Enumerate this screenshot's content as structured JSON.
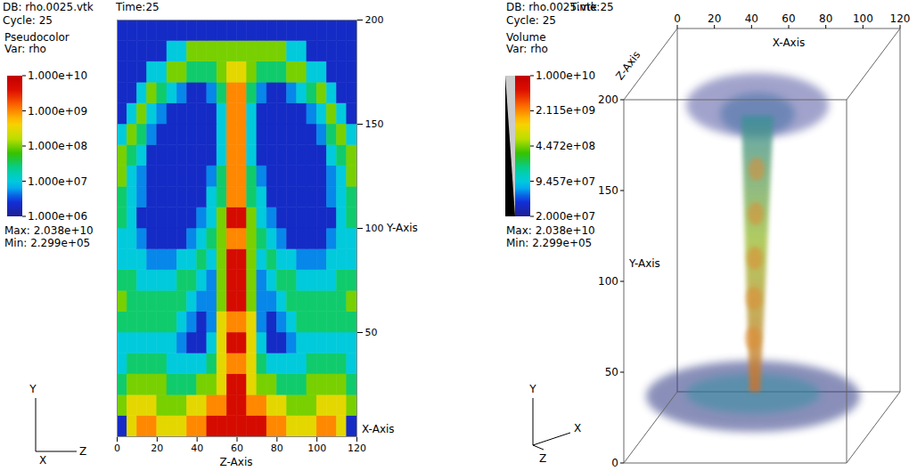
{
  "chart_data": [
    {
      "type": "heatmap",
      "db_label": "DB: rho.0025.vtk",
      "cycle_label": "Cycle: 25",
      "time_label": "Time:25",
      "plot_name": "Pseudocolor",
      "var_label": "Var: rho",
      "max_label": "Max: 2.038e+10",
      "min_label": "Min: 2.299e+05",
      "x_label": "Z-Axis",
      "y_label": "Y-Axis",
      "depth_label": "X-Axis",
      "triad": [
        "Y",
        "X",
        "Z"
      ],
      "xlim": [
        0,
        120
      ],
      "xticks": [
        0,
        20,
        40,
        60,
        80,
        100,
        120
      ],
      "ylim": [
        0,
        200
      ],
      "yticks": [
        50,
        100,
        150,
        200
      ],
      "x_bins": [
        0,
        5,
        10,
        15,
        20,
        25,
        30,
        35,
        40,
        45,
        50,
        55,
        60,
        65,
        70,
        75,
        80,
        85,
        90,
        95,
        100,
        105,
        110,
        115,
        120
      ],
      "y_bins": [
        0,
        10,
        20,
        30,
        40,
        50,
        60,
        70,
        80,
        90,
        100,
        110,
        120,
        130,
        140,
        150,
        160,
        170,
        180,
        190,
        200
      ],
      "cells": [
        [
          2000000.0,
          300000000.0,
          1000000000.0,
          1000000000.0,
          300000000.0,
          300000000.0,
          300000000.0,
          1000000000.0,
          1000000000.0,
          5000000000.0,
          5000000000.0,
          5000000000.0,
          5000000000.0,
          5000000000.0,
          5000000000.0,
          1000000000.0,
          1000000000.0,
          300000000.0,
          300000000.0,
          300000000.0,
          1000000000.0,
          1000000000.0,
          300000000.0,
          2000000.0
        ],
        [
          100000000.0,
          300000000.0,
          300000000.0,
          300000000.0,
          100000000.0,
          100000000.0,
          100000000.0,
          300000000.0,
          300000000.0,
          1000000000.0,
          1000000000.0,
          5000000000.0,
          5000000000.0,
          1000000000.0,
          1000000000.0,
          300000000.0,
          300000000.0,
          100000000.0,
          100000000.0,
          100000000.0,
          300000000.0,
          300000000.0,
          300000000.0,
          100000000.0
        ],
        [
          30000000.0,
          100000000.0,
          100000000.0,
          100000000.0,
          100000000.0,
          30000000.0,
          30000000.0,
          30000000.0,
          100000000.0,
          100000000.0,
          300000000.0,
          5000000000.0,
          5000000000.0,
          300000000.0,
          100000000.0,
          100000000.0,
          30000000.0,
          30000000.0,
          30000000.0,
          100000000.0,
          100000000.0,
          100000000.0,
          100000000.0,
          30000000.0
        ],
        [
          10000000.0,
          30000000.0,
          30000000.0,
          30000000.0,
          30000000.0,
          10000000.0,
          10000000.0,
          10000000.0,
          10000000.0,
          30000000.0,
          300000000.0,
          1000000000.0,
          1000000000.0,
          300000000.0,
          30000000.0,
          10000000.0,
          10000000.0,
          10000000.0,
          10000000.0,
          30000000.0,
          30000000.0,
          30000000.0,
          30000000.0,
          10000000.0
        ],
        [
          10000000.0,
          10000000.0,
          10000000.0,
          10000000.0,
          10000000.0,
          10000000.0,
          5000000.0,
          2000000.0,
          2000000.0,
          10000000.0,
          300000000.0,
          5000000000.0,
          5000000000.0,
          300000000.0,
          10000000.0,
          2000000.0,
          2000000.0,
          5000000.0,
          10000000.0,
          10000000.0,
          10000000.0,
          10000000.0,
          10000000.0,
          10000000.0
        ],
        [
          30000000.0,
          30000000.0,
          30000000.0,
          30000000.0,
          30000000.0,
          30000000.0,
          10000000.0,
          5000000.0,
          2000000.0,
          5000000.0,
          300000000.0,
          1000000000.0,
          1000000000.0,
          300000000.0,
          5000000.0,
          2000000.0,
          5000000.0,
          10000000.0,
          30000000.0,
          30000000.0,
          30000000.0,
          30000000.0,
          30000000.0,
          30000000.0
        ],
        [
          100000000.0,
          30000000.0,
          30000000.0,
          30000000.0,
          30000000.0,
          30000000.0,
          30000000.0,
          10000000.0,
          5000000.0,
          5000000.0,
          100000000.0,
          5000000000.0,
          5000000000.0,
          100000000.0,
          5000000.0,
          5000000.0,
          10000000.0,
          30000000.0,
          30000000.0,
          30000000.0,
          30000000.0,
          30000000.0,
          30000000.0,
          100000000.0
        ],
        [
          30000000.0,
          30000000.0,
          10000000.0,
          10000000.0,
          10000000.0,
          10000000.0,
          30000000.0,
          30000000.0,
          10000000.0,
          5000000.0,
          100000000.0,
          5000000000.0,
          5000000000.0,
          100000000.0,
          5000000.0,
          10000000.0,
          30000000.0,
          30000000.0,
          10000000.0,
          10000000.0,
          10000000.0,
          10000000.0,
          30000000.0,
          30000000.0
        ],
        [
          10000000.0,
          10000000.0,
          10000000.0,
          5000000.0,
          5000000.0,
          5000000.0,
          10000000.0,
          10000000.0,
          30000000.0,
          10000000.0,
          100000000.0,
          5000000000.0,
          5000000000.0,
          100000000.0,
          10000000.0,
          30000000.0,
          10000000.0,
          10000000.0,
          5000000.0,
          5000000.0,
          5000000.0,
          10000000.0,
          10000000.0,
          10000000.0
        ],
        [
          10000000.0,
          10000000.0,
          5000000.0,
          2000000.0,
          2000000.0,
          2000000.0,
          2000000.0,
          5000000.0,
          10000000.0,
          30000000.0,
          100000000.0,
          1000000000.0,
          1000000000.0,
          100000000.0,
          30000000.0,
          10000000.0,
          5000000.0,
          2000000.0,
          2000000.0,
          2000000.0,
          2000000.0,
          5000000.0,
          10000000.0,
          10000000.0
        ],
        [
          30000000.0,
          10000000.0,
          2000000.0,
          2000000.0,
          2000000.0,
          2000000.0,
          2000000.0,
          2000000.0,
          5000000.0,
          10000000.0,
          100000000.0,
          5000000000.0,
          5000000000.0,
          100000000.0,
          10000000.0,
          5000000.0,
          2000000.0,
          2000000.0,
          2000000.0,
          2000000.0,
          2000000.0,
          2000000.0,
          10000000.0,
          30000000.0
        ],
        [
          30000000.0,
          10000000.0,
          5000000.0,
          2000000.0,
          2000000.0,
          2000000.0,
          2000000.0,
          2000000.0,
          2000000.0,
          10000000.0,
          30000000.0,
          1000000000.0,
          1000000000.0,
          30000000.0,
          10000000.0,
          2000000.0,
          2000000.0,
          2000000.0,
          2000000.0,
          2000000.0,
          2000000.0,
          5000000.0,
          10000000.0,
          30000000.0
        ],
        [
          100000000.0,
          10000000.0,
          5000000.0,
          2000000.0,
          2000000.0,
          2000000.0,
          2000000.0,
          2000000.0,
          2000000.0,
          5000000.0,
          30000000.0,
          1000000000.0,
          1000000000.0,
          30000000.0,
          5000000.0,
          2000000.0,
          2000000.0,
          2000000.0,
          2000000.0,
          2000000.0,
          2000000.0,
          5000000.0,
          10000000.0,
          100000000.0
        ],
        [
          100000000.0,
          30000000.0,
          10000000.0,
          2000000.0,
          2000000.0,
          2000000.0,
          2000000.0,
          2000000.0,
          2000000.0,
          2000000.0,
          10000000.0,
          1000000000.0,
          1000000000.0,
          10000000.0,
          2000000.0,
          2000000.0,
          2000000.0,
          2000000.0,
          2000000.0,
          2000000.0,
          2000000.0,
          10000000.0,
          30000000.0,
          100000000.0
        ],
        [
          10000000.0,
          100000000.0,
          30000000.0,
          5000000.0,
          2000000.0,
          2000000.0,
          2000000.0,
          2000000.0,
          2000000.0,
          2000000.0,
          10000000.0,
          1000000000.0,
          1000000000.0,
          10000000.0,
          2000000.0,
          2000000.0,
          2000000.0,
          2000000.0,
          2000000.0,
          2000000.0,
          5000000.0,
          30000000.0,
          100000000.0,
          10000000.0
        ],
        [
          2000000.0,
          10000000.0,
          100000000.0,
          10000000.0,
          5000000.0,
          2000000.0,
          2000000.0,
          2000000.0,
          2000000.0,
          2000000.0,
          10000000.0,
          1000000000.0,
          1000000000.0,
          10000000.0,
          2000000.0,
          2000000.0,
          2000000.0,
          2000000.0,
          2000000.0,
          5000000.0,
          10000000.0,
          100000000.0,
          10000000.0,
          2000000.0
        ],
        [
          2000000.0,
          2000000.0,
          10000000.0,
          100000000.0,
          30000000.0,
          10000000.0,
          5000000.0,
          2000000.0,
          2000000.0,
          5000000.0,
          30000000.0,
          1000000000.0,
          1000000000.0,
          30000000.0,
          5000000.0,
          2000000.0,
          2000000.0,
          5000000.0,
          10000000.0,
          30000000.0,
          100000000.0,
          10000000.0,
          2000000.0,
          2000000.0
        ],
        [
          2000000.0,
          2000000.0,
          2000000.0,
          10000000.0,
          10000000.0,
          100000000.0,
          100000000.0,
          30000000.0,
          30000000.0,
          30000000.0,
          100000000.0,
          300000000.0,
          300000000.0,
          100000000.0,
          30000000.0,
          30000000.0,
          30000000.0,
          100000000.0,
          100000000.0,
          10000000.0,
          10000000.0,
          2000000.0,
          2000000.0,
          2000000.0
        ],
        [
          2000000.0,
          2000000.0,
          2000000.0,
          2000000.0,
          2000000.0,
          10000000.0,
          10000000.0,
          100000000.0,
          100000000.0,
          100000000.0,
          100000000.0,
          100000000.0,
          100000000.0,
          100000000.0,
          100000000.0,
          100000000.0,
          100000000.0,
          10000000.0,
          10000000.0,
          2000000.0,
          2000000.0,
          2000000.0,
          2000000.0,
          2000000.0
        ],
        [
          2000000.0,
          2000000.0,
          2000000.0,
          2000000.0,
          2000000.0,
          2000000.0,
          2000000.0,
          2000000.0,
          2000000.0,
          2000000.0,
          2000000.0,
          2000000.0,
          2000000.0,
          2000000.0,
          2000000.0,
          2000000.0,
          2000000.0,
          2000000.0,
          2000000.0,
          2000000.0,
          2000000.0,
          2000000.0,
          2000000.0,
          2000000.0
        ]
      ],
      "colorbar": {
        "log": true,
        "range": [
          1000000.0,
          10000000000.0
        ],
        "ticks": [
          {
            "value": 10000000000.0,
            "label": "1.000e+10"
          },
          {
            "value": 1000000000.0,
            "label": "1.000e+09"
          },
          {
            "value": 100000000.0,
            "label": "1.000e+08"
          },
          {
            "value": 10000000.0,
            "label": "1.000e+07"
          },
          {
            "value": 1000000.0,
            "label": "1.000e+06"
          }
        ]
      }
    },
    {
      "type": "volume",
      "db_label": "DB: rho.0025.vtk",
      "cycle_label": "Cycle: 25",
      "time_label": "Time:25",
      "plot_name": "Volume",
      "var_label": "Var: rho",
      "max_label": "Max: 2.038e+10",
      "min_label": "Min: 2.299e+05",
      "x_label": "X-Axis",
      "y_label": "Y-Axis",
      "depth_label": "Z-Axis",
      "triad": [
        "Y",
        "Z",
        "X"
      ],
      "xlim": [
        0,
        120
      ],
      "xticks": [
        0,
        20,
        40,
        60,
        80,
        100,
        120
      ],
      "ylim": [
        0,
        200
      ],
      "yticks": [
        0,
        50,
        100,
        150,
        200
      ],
      "colorbar": {
        "log": true,
        "range": [
          20000000.0,
          10000000000.0
        ],
        "ticks": [
          {
            "value": 10000000000.0,
            "label": "1.000e+10"
          },
          {
            "value": 2115000000.0,
            "label": "2.115e+09"
          },
          {
            "value": 447200000.0,
            "label": "4.472e+08"
          },
          {
            "value": 94570000.0,
            "label": "9.457e+07"
          },
          {
            "value": 20000000.0,
            "label": "2.000e+07"
          }
        ]
      }
    }
  ]
}
